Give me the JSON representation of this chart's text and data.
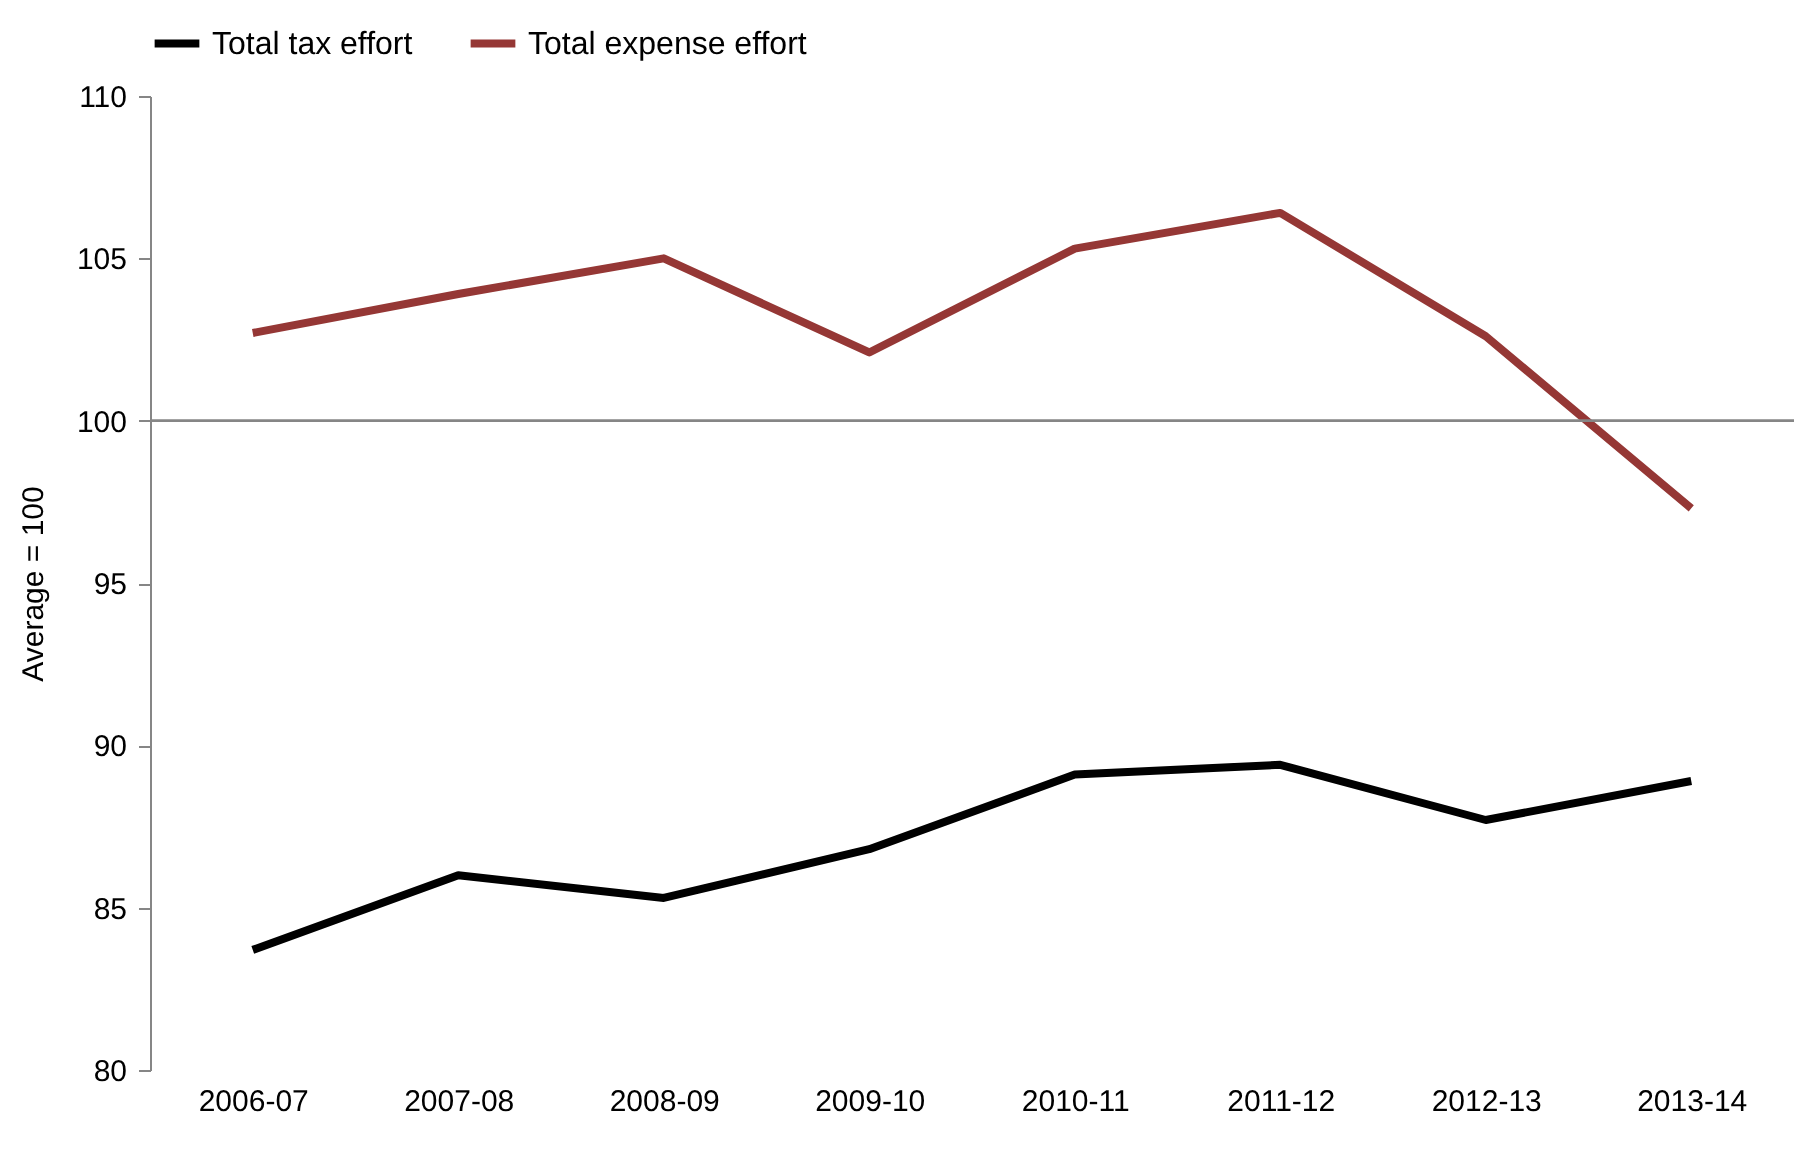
{
  "chart_data": {
    "type": "line",
    "ylabel": "Average = 100",
    "categories": [
      "2006-07",
      "2007-08",
      "2008-09",
      "2009-10",
      "2010-11",
      "2011-12",
      "2012-13",
      "2013-14"
    ],
    "series": [
      {
        "name": "Total tax effort",
        "color": "#000000",
        "values": [
          83.7,
          86.0,
          85.3,
          86.8,
          89.1,
          89.4,
          87.7,
          88.9
        ]
      },
      {
        "name": "Total expense effort",
        "color": "#953735",
        "values": [
          102.7,
          103.9,
          105.0,
          102.1,
          105.3,
          106.4,
          102.6,
          97.3
        ]
      }
    ],
    "ylim": [
      80,
      110
    ],
    "yticks": [
      80,
      85,
      90,
      95,
      100,
      105,
      110
    ],
    "grid": false,
    "legend": "top",
    "marker": "none",
    "line_style": "solid",
    "ref_lines": [
      {
        "axis": "y",
        "value": 100,
        "color": "#868686"
      }
    ]
  }
}
